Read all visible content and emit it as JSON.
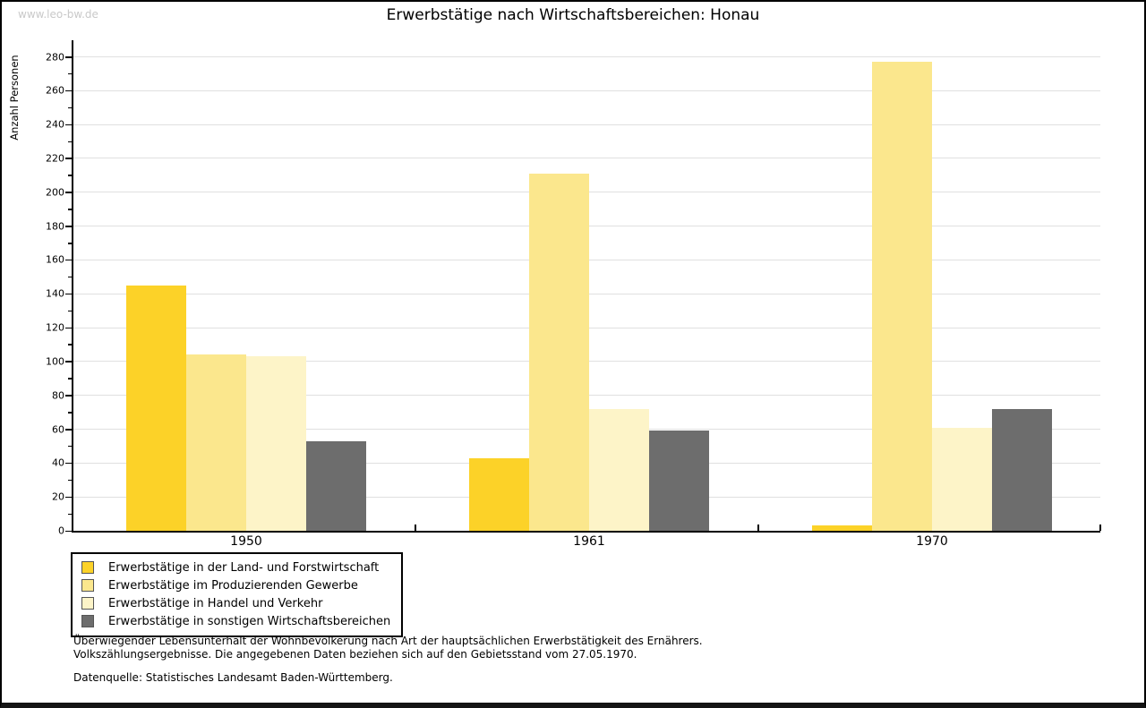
{
  "watermark": "www.leo-bw.de",
  "chart_data": {
    "type": "bar",
    "title": "Erwerbstätige nach Wirtschaftsbereichen: Honau",
    "ylabel": "Anzahl Personen",
    "xlabel": "",
    "categories": [
      "1950",
      "1961",
      "1970"
    ],
    "series": [
      {
        "name": "Erwerbstätige in der Land- und Forstwirtschaft",
        "color": "#FCD228",
        "values": [
          145,
          43,
          3
        ]
      },
      {
        "name": "Erwerbstätige im Produzierenden Gewerbe",
        "color": "#FBE78D",
        "values": [
          104,
          211,
          277
        ]
      },
      {
        "name": "Erwerbstätige in Handel und Verkehr",
        "color": "#FDF4C8",
        "values": [
          103,
          72,
          61
        ]
      },
      {
        "name": "Erwerbstätige in sonstigen Wirtschaftsbereichen",
        "color": "#6D6D6D",
        "values": [
          53,
          59,
          72
        ]
      }
    ],
    "ylim": [
      0,
      280
    ],
    "ytick_step": 20,
    "yminor_step": 10,
    "grid": true,
    "legend_position": "bottom-left"
  },
  "footnote": {
    "line1": "Überwiegender Lebensunterhalt der Wohnbevölkerung nach Art der hauptsächlichen Erwerbstätigkeit des Ernährers.",
    "line2": "Volkszählungsergebnisse. Die angegebenen Daten beziehen sich auf den Gebietsstand vom 27.05.1970.",
    "source": "Datenquelle: Statistisches Landesamt Baden-Württemberg."
  },
  "colors": {
    "grid": "#E0E0E0",
    "axis": "#000000",
    "watermark": "#C9C9C9",
    "swatch_border": "#555555",
    "frame_border": "#000000"
  }
}
